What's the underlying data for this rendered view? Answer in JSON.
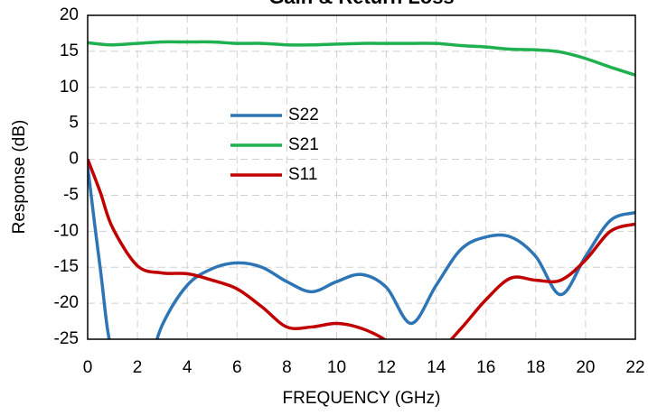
{
  "chart_data": {
    "type": "line",
    "title": "Gain & Return Loss",
    "x_label": "FREQUENCY (GHz)",
    "y_label": "Response (dB)",
    "x": [
      0,
      0.5,
      1,
      2,
      3,
      4,
      5,
      6,
      7,
      8,
      9,
      10,
      11,
      12,
      13,
      14,
      15,
      16,
      17,
      18,
      19,
      20,
      21,
      22
    ],
    "series": [
      {
        "name": "S22",
        "color": "#2e75b6",
        "values": [
          -1,
          -15,
          -27,
          -32,
          -23,
          -17.5,
          -15.2,
          -14.4,
          -15,
          -17,
          -18.4,
          -17,
          -16,
          -17.8,
          -22.8,
          -17.5,
          -12.5,
          -10.8,
          -10.8,
          -13.5,
          -18.8,
          -13.5,
          -8.5,
          -7.4
        ]
      },
      {
        "name": "S21",
        "color": "#1fb04f",
        "values": [
          16.2,
          16.0,
          15.9,
          16.1,
          16.3,
          16.3,
          16.3,
          16.1,
          16.1,
          15.9,
          15.9,
          16.0,
          16.1,
          16.1,
          16.1,
          16.1,
          15.8,
          15.6,
          15.3,
          15.2,
          14.9,
          14.0,
          12.8,
          11.7
        ]
      },
      {
        "name": "S11",
        "color": "#c00000",
        "values": [
          0,
          -4.5,
          -9.5,
          -14.8,
          -15.8,
          -15.9,
          -16.8,
          -18,
          -20.5,
          -23.3,
          -23.3,
          -22.8,
          -23.5,
          -25.2,
          -28,
          -27,
          -23.5,
          -19.5,
          -16.5,
          -16.8,
          -16.8,
          -14,
          -10,
          -9
        ]
      }
    ],
    "xlim": [
      0,
      22
    ],
    "ylim": [
      -25,
      20
    ],
    "xticks": [
      0,
      2,
      4,
      6,
      8,
      10,
      12,
      14,
      16,
      18,
      20,
      22
    ],
    "yticks": [
      -25,
      -20,
      -15,
      -10,
      -5,
      0,
      5,
      10,
      15,
      20
    ],
    "grid": true,
    "legend": "center"
  }
}
